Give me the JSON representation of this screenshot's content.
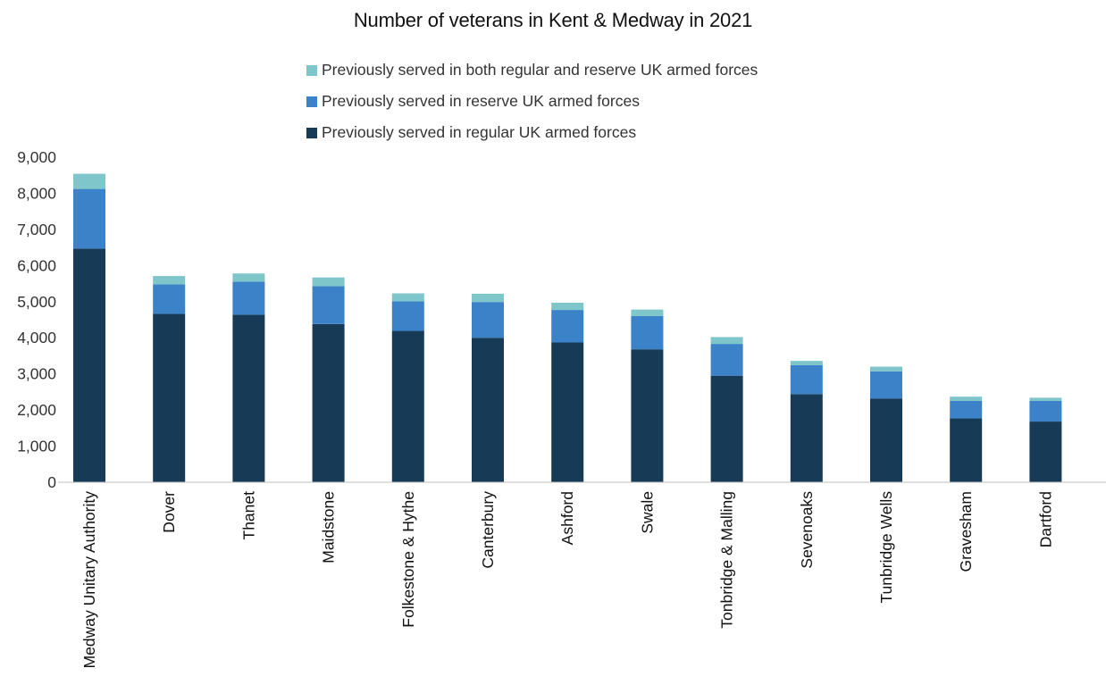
{
  "chart_data": {
    "type": "bar",
    "stacked": true,
    "title": "Number of veterans in Kent & Medway in 2021",
    "xlabel": "",
    "ylabel": "",
    "ylim": [
      0,
      9000
    ],
    "yticks": [
      "0",
      "1,000",
      "2,000",
      "3,000",
      "4,000",
      "5,000",
      "6,000",
      "7,000",
      "8,000",
      "9,000"
    ],
    "grid": false,
    "legend_position": "top",
    "categories": [
      "Medway Unitary Authority",
      "Dover",
      "Thanet",
      "Maidstone",
      "Folkestone & Hythe",
      "Canterbury",
      "Ashford",
      "Swale",
      "Tonbridge & Malling",
      "Sevenoaks",
      "Tunbridge Wells",
      "Gravesham",
      "Dartford"
    ],
    "series": [
      {
        "name": "Previously served in regular UK armed forces",
        "color": "#173a57",
        "values": [
          6470,
          4660,
          4640,
          4380,
          4190,
          4000,
          3870,
          3680,
          2950,
          2440,
          2320,
          1770,
          1680
        ]
      },
      {
        "name": "Previously served in reserve UK armed forces",
        "color": "#3b82c8",
        "values": [
          1650,
          820,
          910,
          1050,
          820,
          990,
          900,
          920,
          880,
          800,
          750,
          480,
          570
        ]
      },
      {
        "name": "Previously served in both regular and reserve UK armed forces",
        "color": "#7ec6c9",
        "values": [
          420,
          230,
          230,
          240,
          220,
          230,
          200,
          180,
          190,
          120,
          130,
          120,
          90
        ]
      }
    ]
  }
}
